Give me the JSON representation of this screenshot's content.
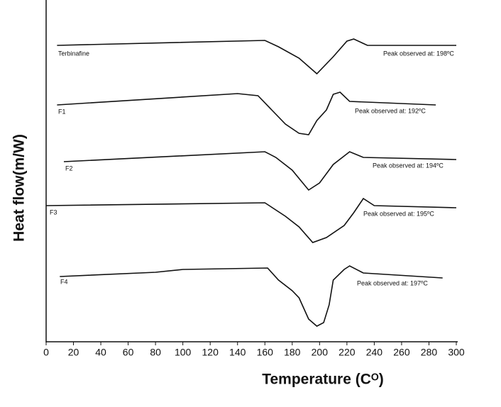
{
  "chart_data": {
    "type": "line",
    "xlabel": "Temperature (Cᴼ)",
    "ylabel": "Heat flow(m/W)",
    "xlim": [
      0,
      300
    ],
    "xticks": [
      0,
      20,
      40,
      60,
      80,
      100,
      120,
      140,
      160,
      180,
      200,
      220,
      240,
      260,
      280,
      300
    ],
    "ylim": [
      0,
      480
    ],
    "color": "#111111",
    "series": [
      {
        "name": "Terbinafine",
        "annotation": "Peak observed at: 198ºC",
        "x": [
          8,
          160,
          170,
          185,
          198,
          210,
          220,
          225,
          235,
          300
        ],
        "values": [
          418,
          425,
          416,
          400,
          378,
          402,
          424,
          427,
          418,
          418
        ]
      },
      {
        "name": "F1",
        "annotation": "Peak observed at: 192ºC",
        "x": [
          8,
          140,
          155,
          165,
          175,
          185,
          192,
          198,
          205,
          210,
          215,
          222,
          285
        ],
        "values": [
          334,
          350,
          347,
          327,
          307,
          294,
          292,
          312,
          327,
          349,
          352,
          339,
          334
        ]
      },
      {
        "name": "F2",
        "annotation": "Peak observed at: 194ºC",
        "x": [
          13,
          160,
          168,
          180,
          192,
          200,
          210,
          222,
          232,
          300
        ],
        "values": [
          254,
          268,
          260,
          242,
          214,
          224,
          250,
          268,
          260,
          257
        ]
      },
      {
        "name": "F3",
        "annotation": "Peak observed at: 195ºC",
        "x": [
          0,
          160,
          175,
          185,
          195,
          205,
          218,
          225,
          232,
          240,
          300
        ],
        "values": [
          192,
          196,
          177,
          162,
          140,
          147,
          164,
          182,
          202,
          192,
          189
        ]
      },
      {
        "name": "F4",
        "annotation": "Peak observed at: 197ºC",
        "x": [
          10,
          80,
          100,
          162,
          170,
          180,
          185,
          192,
          198,
          203,
          207,
          210,
          218,
          222,
          232,
          290
        ],
        "values": [
          92,
          98,
          102,
          104,
          87,
          72,
          62,
          32,
          22,
          27,
          52,
          87,
          102,
          107,
          97,
          90
        ]
      }
    ]
  }
}
